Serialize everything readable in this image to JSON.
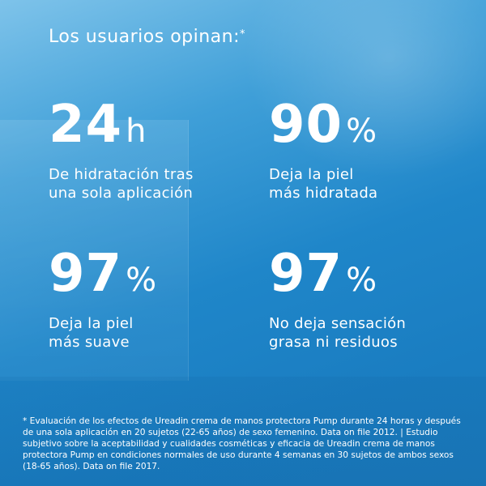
{
  "heading": {
    "text": "Los usuarios opinan:",
    "mark": "*"
  },
  "stats": [
    {
      "value": "24",
      "unit": "h",
      "desc_line1": "De hidratación tras",
      "desc_line2": "una sola aplicación"
    },
    {
      "value": "90",
      "unit": "%",
      "desc_line1": "Deja la piel",
      "desc_line2": "más hidratada"
    },
    {
      "value": "97",
      "unit": "%",
      "desc_line1": "Deja la piel",
      "desc_line2": "más suave"
    },
    {
      "value": "97",
      "unit": "%",
      "desc_line1": "No deja sensación",
      "desc_line2": "grasa ni residuos"
    }
  ],
  "footnote": "* Evaluación de los efectos de Ureadin crema de manos protectora Pump durante 24 horas y después de una sola aplicación en 20 sujetos (22-65 años) de sexo femenino. Data on file 2012. | Estudio subjetivo sobre la aceptabilidad y cualidades cosméticas y eficacia de Ureadin crema de manos protectora Pump en condiciones normales de uso durante 4 semanas en 30 sujetos de ambos sexos (18-65 años). Data on file 2017.",
  "colors": {
    "background_top": "#7ec3ea",
    "background_bottom": "#1b7bbd",
    "text": "#ffffff"
  }
}
